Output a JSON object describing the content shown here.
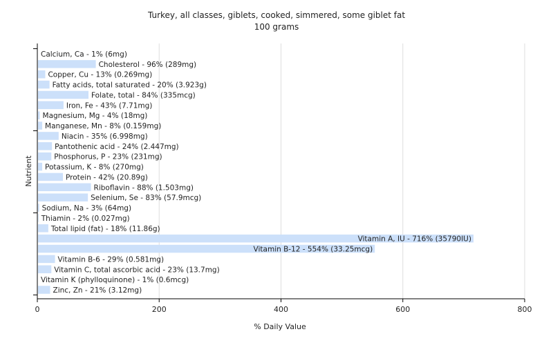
{
  "chart_data": {
    "type": "bar",
    "orientation": "horizontal",
    "title": "Turkey, all classes, giblets, cooked, simmered, some giblet fat",
    "subtitle": "100 grams",
    "xlabel": "% Daily Value",
    "ylabel": "Nutrient",
    "xlim": [
      0,
      800
    ],
    "xticks": [
      0,
      200,
      400,
      600,
      800
    ],
    "grid": true,
    "bar_color": "#cce0fa",
    "categories": [
      "Calcium, Ca",
      "Cholesterol",
      "Copper, Cu",
      "Fatty acids, total saturated",
      "Folate, total",
      "Iron, Fe",
      "Magnesium, Mg",
      "Manganese, Mn",
      "Niacin",
      "Pantothenic acid",
      "Phosphorus, P",
      "Potassium, K",
      "Protein",
      "Riboflavin",
      "Selenium, Se",
      "Sodium, Na",
      "Thiamin",
      "Total lipid (fat)",
      "Vitamin A, IU",
      "Vitamin B-12",
      "Vitamin B-6",
      "Vitamin C, total ascorbic acid",
      "Vitamin K (phylloquinone)",
      "Zinc, Zn"
    ],
    "values": [
      1,
      96,
      13,
      20,
      84,
      43,
      4,
      8,
      35,
      24,
      23,
      8,
      42,
      88,
      83,
      3,
      2,
      18,
      716,
      554,
      29,
      23,
      1,
      21
    ],
    "labels": [
      "Calcium, Ca - 1% (6mg)",
      "Cholesterol - 96% (289mg)",
      "Copper, Cu - 13% (0.269mg)",
      "Fatty acids, total saturated - 20% (3.923g)",
      "Folate, total - 84% (335mcg)",
      "Iron, Fe - 43% (7.71mg)",
      "Magnesium, Mg - 4% (18mg)",
      "Manganese, Mn - 8% (0.159mg)",
      "Niacin - 35% (6.998mg)",
      "Pantothenic acid - 24% (2.447mg)",
      "Phosphorus, P - 23% (231mg)",
      "Potassium, K - 8% (270mg)",
      "Protein - 42% (20.89g)",
      "Riboflavin - 88% (1.503mg)",
      "Selenium, Se - 83% (57.9mcg)",
      "Sodium, Na - 3% (64mg)",
      "Thiamin - 2% (0.027mg)",
      "Total lipid (fat) - 18% (11.86g)",
      "Vitamin A, IU - 716% (35790IU)",
      "Vitamin B-12 - 554% (33.25mcg)",
      "Vitamin B-6 - 29% (0.581mg)",
      "Vitamin C, total ascorbic acid - 23% (13.7mg)",
      "Vitamin K (phylloquinone) - 1% (0.6mcg)",
      "Zinc, Zn - 21% (3.12mg)"
    ]
  }
}
